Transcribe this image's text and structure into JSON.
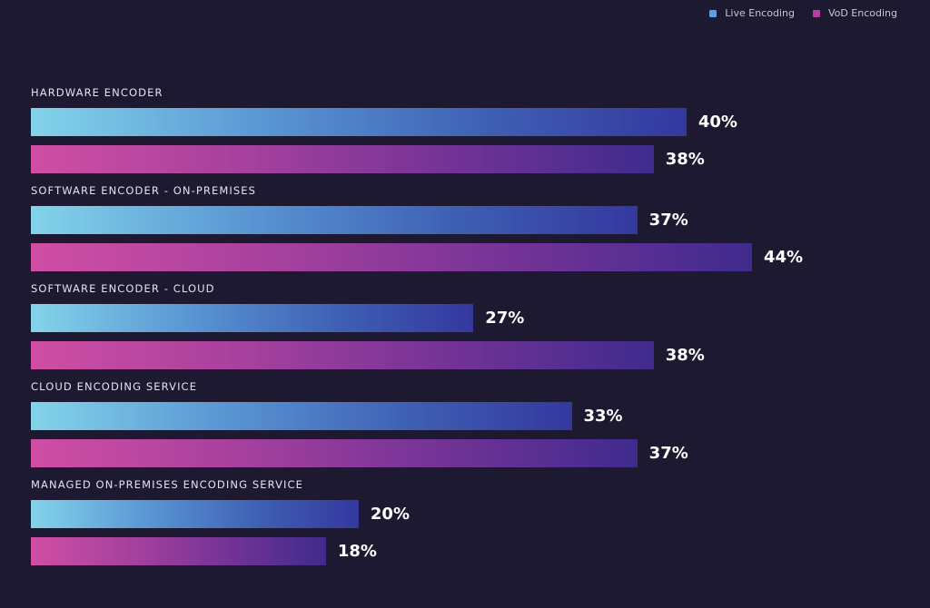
{
  "chart_data": {
    "type": "bar",
    "orientation": "horizontal",
    "categories": [
      "HARDWARE ENCODER",
      "SOFTWARE ENCODER - ON-PREMISES",
      "SOFTWARE ENCODER - CLOUD",
      "CLOUD ENCODING SERVICE",
      "MANAGED ON-PREMISES ENCODING SERVICE"
    ],
    "series": [
      {
        "name": "Live Encoding",
        "key": "live",
        "values": [
          40,
          37,
          27,
          33,
          20
        ]
      },
      {
        "name": "VoD Encoding",
        "key": "vod",
        "values": [
          38,
          44,
          38,
          37,
          18
        ]
      }
    ],
    "value_suffix": "%",
    "xlim": [
      0,
      44
    ],
    "grid": false,
    "legend_position": "top-right"
  },
  "colors": {
    "background": "#1d1930",
    "live_start": "#83d4ea",
    "live_end": "#34389e",
    "vod_start": "#d04ea4",
    "vod_end": "#3f2b8d",
    "live_swatch": "#5aa0e0",
    "vod_swatch": "#b5409d"
  }
}
